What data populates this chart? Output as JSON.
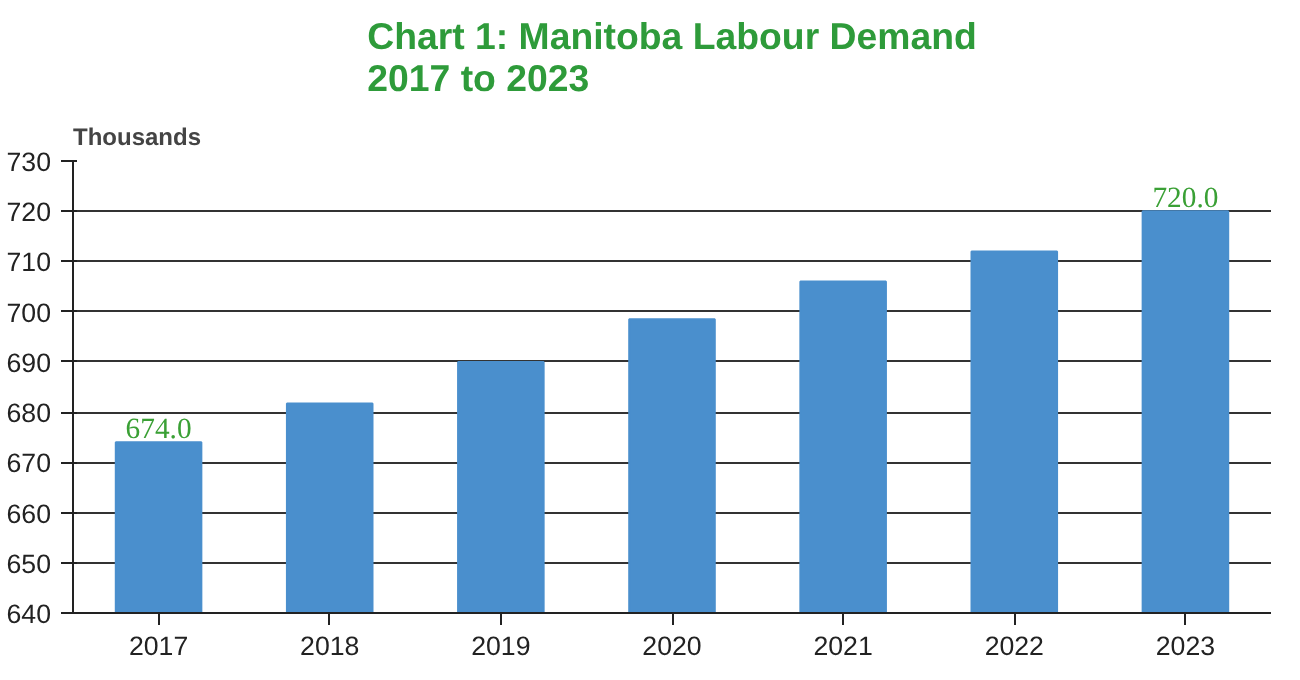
{
  "chart_data": {
    "type": "bar",
    "title": "Chart 1: Manitoba Labour Demand\n2017 to 2023",
    "ylabel": "Thousands",
    "categories": [
      "2017",
      "2018",
      "2019",
      "2020",
      "2021",
      "2022",
      "2023"
    ],
    "values": [
      674.0,
      681.7,
      690.0,
      698.5,
      706.0,
      712.0,
      720.0
    ],
    "value_labels": [
      "674.0",
      null,
      null,
      null,
      null,
      null,
      "720.0"
    ],
    "color": "#4a8fcd",
    "ylim": [
      640,
      730
    ],
    "yticks": [
      640,
      650,
      660,
      670,
      680,
      690,
      700,
      710,
      720,
      730
    ],
    "grid": "y"
  }
}
